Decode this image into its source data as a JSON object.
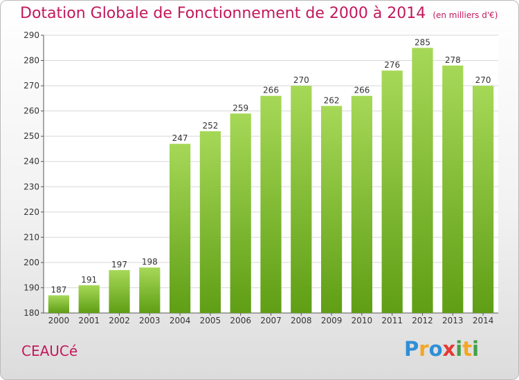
{
  "chart_data": {
    "type": "bar",
    "title": "Dotation Globale de Fonctionnement de 2000 à 2014",
    "unit_label": "(en milliers d'€)",
    "categories": [
      "2000",
      "2001",
      "2002",
      "2003",
      "2004",
      "2005",
      "2006",
      "2007",
      "2008",
      "2009",
      "2010",
      "2011",
      "2012",
      "2013",
      "2014"
    ],
    "values": [
      187,
      191,
      197,
      198,
      247,
      252,
      259,
      266,
      270,
      262,
      266,
      276,
      285,
      278,
      270
    ],
    "y_ticks": [
      180,
      190,
      200,
      210,
      220,
      230,
      240,
      250,
      260,
      270,
      280,
      290
    ],
    "ylim": [
      180,
      290
    ],
    "grid": true,
    "xlabel": "",
    "ylabel": ""
  },
  "commune": "CEAUCé",
  "brand": {
    "name": "Proxiti",
    "letters": [
      "P",
      "r",
      "o",
      "x",
      "i",
      "t",
      "i"
    ]
  },
  "colors": {
    "bar_top": "#a6d857",
    "bar_bottom": "#5f9e15",
    "title": "#c2185b",
    "grid": "#d8d8d8"
  }
}
